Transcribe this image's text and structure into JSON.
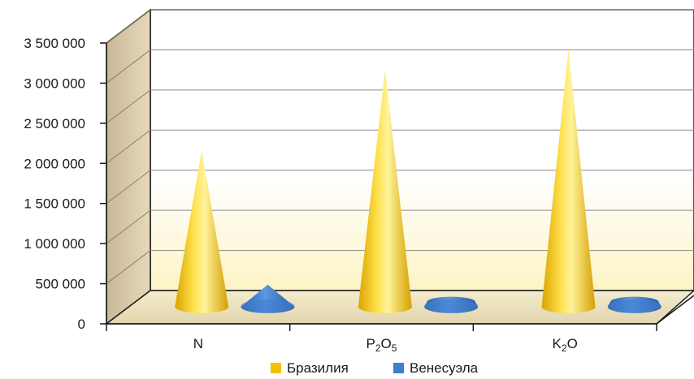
{
  "chart_data": {
    "type": "bar",
    "shape": "cone-3d",
    "categories": [
      "N",
      "P2O5",
      "K2O"
    ],
    "category_display": [
      {
        "main": "N",
        "parts": [
          {
            "t": "N",
            "sub": false
          }
        ]
      },
      {
        "main": "P2O5",
        "parts": [
          {
            "t": "P",
            "sub": false
          },
          {
            "t": "2",
            "sub": true
          },
          {
            "t": "O",
            "sub": false
          },
          {
            "t": "5",
            "sub": true
          }
        ]
      },
      {
        "main": "K2O",
        "parts": [
          {
            "t": "K",
            "sub": false
          },
          {
            "t": "2",
            "sub": true
          },
          {
            "t": "O",
            "sub": false
          }
        ]
      }
    ],
    "series": [
      {
        "name": "Бразилия",
        "color": "#f2c200",
        "values": [
          1980000,
          3000000,
          3260000
        ]
      },
      {
        "name": "Венесуэла",
        "color": "#3f7fd0",
        "values": [
          280000,
          15000,
          15000
        ]
      }
    ],
    "ylim": [
      0,
      3500000
    ],
    "yticks": [
      0,
      500000,
      1000000,
      1500000,
      2000000,
      2500000,
      3000000,
      3500000
    ],
    "ytick_labels": [
      "0",
      "500 000",
      "1 000 000",
      "1 500 000",
      "2 000 000",
      "2 500 000",
      "3 000 000",
      "3 500 000"
    ],
    "grid": true,
    "legend_position": "bottom",
    "title": "",
    "xlabel": "",
    "ylabel": ""
  }
}
